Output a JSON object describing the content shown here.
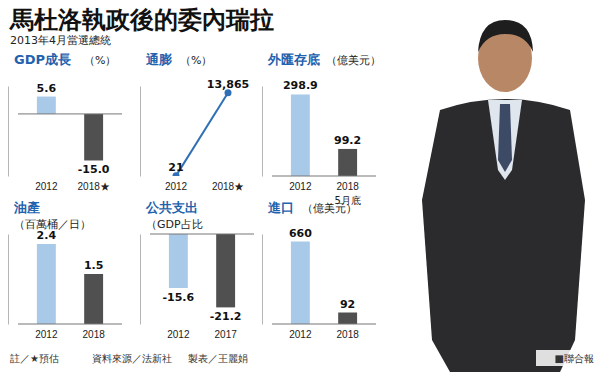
{
  "header": {
    "title": "馬杜洛執政後的委內瑞拉",
    "subtitle": "2013年4月當選總統"
  },
  "chart_data": [
    {
      "type": "bar",
      "title": "GDP成長",
      "subtitle": "（%）",
      "categories": [
        "2012",
        "2018★"
      ],
      "values": [
        5.6,
        -15.0
      ],
      "value_labels": [
        "5.6",
        "-15.0"
      ],
      "colors": [
        "#a9c9e8",
        "#505050"
      ],
      "ylim": [
        -20,
        9
      ],
      "yticks": [],
      "data_labels": true,
      "tick_labels": "x"
    },
    {
      "type": "line",
      "title": "通膨",
      "subtitle": "（%）",
      "categories": [
        "2012",
        "2018★"
      ],
      "values": [
        21,
        13865
      ],
      "value_labels": [
        "21",
        "13,865"
      ],
      "color": "#2f6fb5",
      "marker": "circle",
      "ylim": [
        0,
        15000
      ],
      "yticks": [],
      "data_labels": true,
      "tick_labels": "x"
    },
    {
      "type": "bar",
      "title": "外匯存底",
      "subtitle": "（億美元）",
      "categories": [
        "2012",
        "2018"
      ],
      "annotation": "5月底",
      "values": [
        298.9,
        99.2
      ],
      "colors": [
        "#a9c9e8",
        "#505050"
      ],
      "ylim": [
        0,
        330
      ],
      "yticks": [],
      "data_labels": true,
      "tick_labels": "x"
    },
    {
      "type": "bar",
      "title": "油產",
      "subtitle": "（百萬桶／日）",
      "categories": [
        "2012",
        "2018"
      ],
      "values": [
        2.4,
        1.5
      ],
      "colors": [
        "#a9c9e8",
        "#505050"
      ],
      "ylim": [
        0,
        2.7
      ],
      "yticks": [],
      "data_labels": true,
      "tick_labels": "x"
    },
    {
      "type": "bar",
      "title": "公共支出",
      "subtitle": "（GDP占比",
      "categories": [
        "2012",
        "2017"
      ],
      "values": [
        -15.6,
        -21.2
      ],
      "colors": [
        "#a9c9e8",
        "#505050"
      ],
      "ylim": [
        -26,
        0
      ],
      "yticks": [],
      "data_labels": true,
      "tick_labels": "x"
    },
    {
      "type": "bar",
      "title": "進口",
      "subtitle": "（億美元）",
      "categories": [
        "2012",
        "2018"
      ],
      "values": [
        660,
        92
      ],
      "colors": [
        "#a9c9e8",
        "#505050"
      ],
      "ylim": [
        0,
        720
      ],
      "yticks": [],
      "data_labels": true,
      "tick_labels": "x"
    }
  ],
  "footer": {
    "notes": [
      "註／★預估",
      "資料來源／法新社",
      "製表／王麗娟"
    ],
    "credit": "■聯合報"
  }
}
